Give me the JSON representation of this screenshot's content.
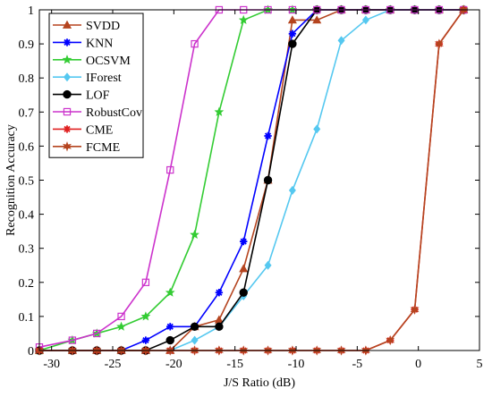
{
  "chart_data": {
    "type": "line",
    "xlabel": "J/S Ratio  (dB)",
    "ylabel": "Recognition Accuracy",
    "xlim": [
      -31,
      5
    ],
    "ylim": [
      0,
      1
    ],
    "xticks": [
      -30,
      -25,
      -20,
      -15,
      -10,
      -5,
      0,
      5
    ],
    "yticks": [
      0,
      0.1,
      0.2,
      0.3,
      0.4,
      0.5,
      0.6,
      0.7,
      0.8,
      0.9,
      1
    ],
    "grid": false,
    "legend_position": "top-left",
    "series": [
      {
        "name": "SVDD",
        "color": "#b5441f",
        "marker": "triangle",
        "x": [
          -31,
          -28.3,
          -26.3,
          -24.3,
          -22.3,
          -20.3,
          -18.3,
          -16.3,
          -14.3,
          -12.3,
          -10.3,
          -8.3,
          -6.3,
          -4.3,
          -2.3,
          -0.3,
          1.7,
          3.7
        ],
        "y": [
          0,
          0,
          0,
          0,
          0,
          0,
          0.07,
          0.09,
          0.24,
          0.5,
          0.97,
          0.97,
          1,
          1,
          1,
          1,
          1,
          1
        ]
      },
      {
        "name": "KNN",
        "color": "#0000ff",
        "marker": "asterisk",
        "x": [
          -31,
          -28.3,
          -26.3,
          -24.3,
          -22.3,
          -20.3,
          -18.3,
          -16.3,
          -14.3,
          -12.3,
          -10.3,
          -8.3,
          -6.3,
          -4.3,
          -2.3,
          -0.3,
          1.7,
          3.7
        ],
        "y": [
          0,
          0,
          0,
          0,
          0.03,
          0.07,
          0.07,
          0.17,
          0.32,
          0.63,
          0.93,
          1,
          1,
          1,
          1,
          1,
          1,
          1
        ]
      },
      {
        "name": "OCSVM",
        "color": "#33cc33",
        "marker": "star",
        "x": [
          -31,
          -28.3,
          -26.3,
          -24.3,
          -22.3,
          -20.3,
          -18.3,
          -16.3,
          -14.3,
          -12.3,
          -10.3,
          -8.3,
          -6.3,
          -4.3,
          -2.3,
          -0.3,
          1.7,
          3.7
        ],
        "y": [
          0,
          0.03,
          0.05,
          0.07,
          0.1,
          0.17,
          0.34,
          0.7,
          0.97,
          1,
          1,
          1,
          1,
          1,
          1,
          1,
          1,
          1
        ]
      },
      {
        "name": "IForest",
        "color": "#55c8f0",
        "marker": "diamond",
        "x": [
          -31,
          -28.3,
          -26.3,
          -24.3,
          -22.3,
          -20.3,
          -18.3,
          -16.3,
          -14.3,
          -12.3,
          -10.3,
          -8.3,
          -6.3,
          -4.3,
          -2.3,
          -0.3,
          1.7,
          3.7
        ],
        "y": [
          0,
          0,
          0,
          0,
          0,
          0,
          0.03,
          0.07,
          0.16,
          0.25,
          0.47,
          0.65,
          0.91,
          0.97,
          1,
          1,
          1,
          1
        ]
      },
      {
        "name": "LOF",
        "color": "#000000",
        "marker": "circle",
        "x": [
          -31,
          -28.3,
          -26.3,
          -24.3,
          -22.3,
          -20.3,
          -18.3,
          -16.3,
          -14.3,
          -12.3,
          -10.3,
          -8.3,
          -6.3,
          -4.3,
          -2.3,
          -0.3,
          1.7,
          3.7
        ],
        "y": [
          0,
          0,
          0,
          0,
          0,
          0.03,
          0.07,
          0.07,
          0.17,
          0.5,
          0.9,
          1,
          1,
          1,
          1,
          1,
          1,
          1
        ]
      },
      {
        "name": "RobustCov",
        "color": "#cc33cc",
        "marker": "square",
        "x": [
          -31,
          -28.3,
          -26.3,
          -24.3,
          -22.3,
          -20.3,
          -18.3,
          -16.3,
          -14.3,
          -12.3,
          -10.3,
          -8.3,
          -6.3,
          -4.3,
          -2.3,
          -0.3,
          1.7,
          3.7
        ],
        "y": [
          0.01,
          0.03,
          0.05,
          0.1,
          0.2,
          0.53,
          0.9,
          1,
          1,
          1,
          1,
          1,
          1,
          1,
          1,
          1,
          1,
          1
        ]
      },
      {
        "name": "CME",
        "color": "#e02020",
        "marker": "asterisk",
        "x": [
          -31,
          -28.3,
          -26.3,
          -24.3,
          -22.3,
          -20.3,
          -18.3,
          -16.3,
          -14.3,
          -12.3,
          -10.3,
          -8.3,
          -6.3,
          -4.3,
          -2.3,
          -0.3,
          1.7,
          3.7
        ],
        "y": [
          0,
          0,
          0,
          0,
          0,
          0,
          0,
          0,
          0,
          0,
          0,
          0,
          0,
          0,
          0.03,
          0.12,
          0.9,
          1
        ]
      },
      {
        "name": "FCME",
        "color": "#b5441f",
        "marker": "hexagram",
        "x": [
          -31,
          -28.3,
          -26.3,
          -24.3,
          -22.3,
          -20.3,
          -18.3,
          -16.3,
          -14.3,
          -12.3,
          -10.3,
          -8.3,
          -6.3,
          -4.3,
          -2.3,
          -0.3,
          1.7,
          3.7
        ],
        "y": [
          0,
          0,
          0,
          0,
          0,
          0,
          0,
          0,
          0,
          0,
          0,
          0,
          0,
          0,
          0.03,
          0.12,
          0.9,
          1
        ]
      }
    ]
  }
}
